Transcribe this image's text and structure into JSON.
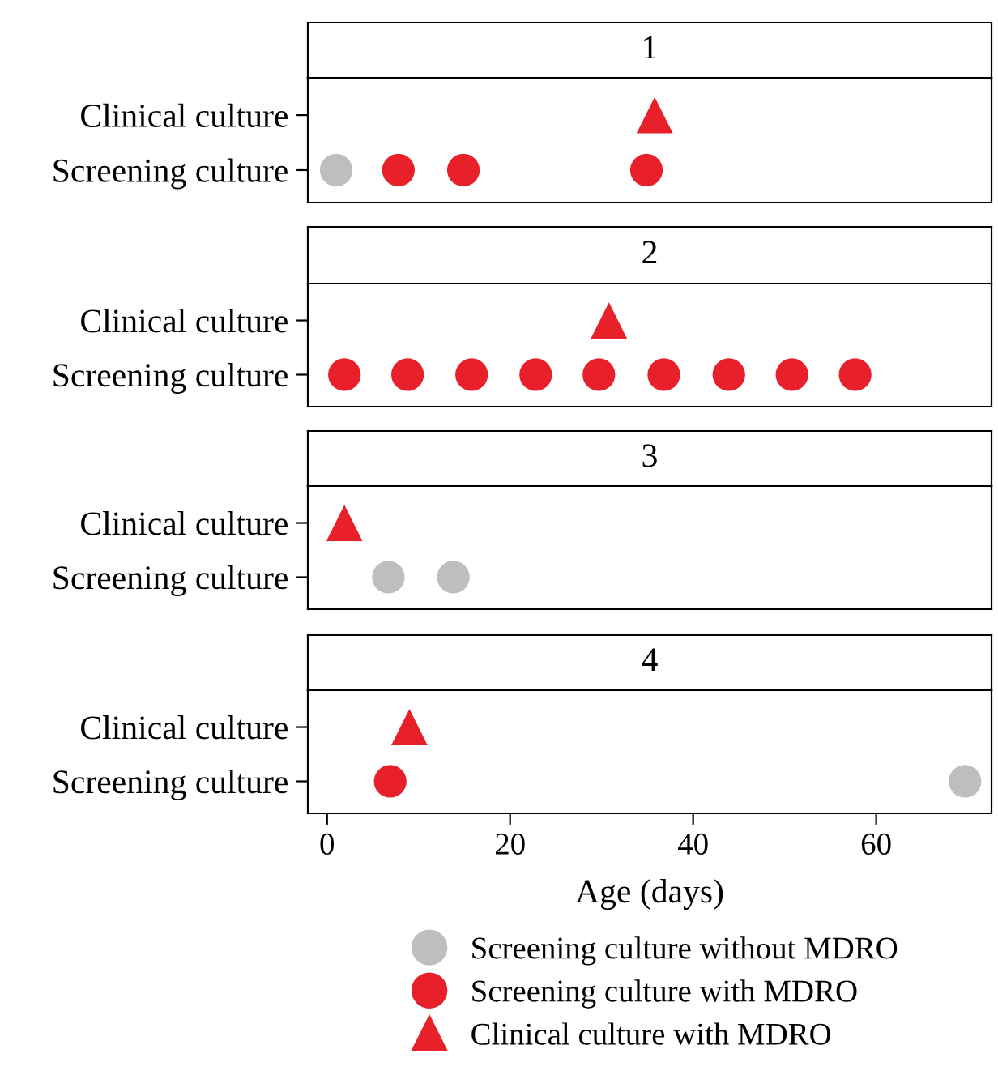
{
  "chart_data": [
    {
      "type": "scatter",
      "title": "1",
      "orientation": "horizontal",
      "categories": [
        "Clinical culture",
        "Screening culture"
      ],
      "xlim": [
        -2.1,
        72.6
      ],
      "xticks": [
        0,
        20,
        40,
        60
      ],
      "tick_labels": "y",
      "grid": false,
      "legend": false,
      "series": [
        {
          "color": "#bebebe",
          "marker": "circle",
          "values": [
            null,
            1
          ]
        },
        {
          "color": "#e8202a",
          "marker": "circle",
          "values": [
            null,
            7.8
          ]
        },
        {
          "color": "#e8202a",
          "marker": "circle",
          "values": [
            null,
            14.9
          ]
        },
        {
          "color": "#e8202a",
          "marker": "circle",
          "values": [
            null,
            34.9
          ]
        },
        {
          "color": "#e8202a",
          "marker": "triangle",
          "values": [
            35.8,
            null
          ]
        }
      ]
    },
    {
      "type": "scatter",
      "title": "2",
      "orientation": "horizontal",
      "categories": [
        "Clinical culture",
        "Screening culture"
      ],
      "xlim": [
        -2.1,
        72.6
      ],
      "xticks": [
        0,
        20,
        40,
        60
      ],
      "tick_labels": "y",
      "grid": false,
      "legend": false,
      "series": [
        {
          "color": "#e8202a",
          "marker": "circle",
          "values": [
            null,
            1.9
          ]
        },
        {
          "color": "#e8202a",
          "marker": "circle",
          "values": [
            null,
            8.8
          ]
        },
        {
          "color": "#e8202a",
          "marker": "circle",
          "values": [
            null,
            15.8
          ]
        },
        {
          "color": "#e8202a",
          "marker": "circle",
          "values": [
            null,
            22.8
          ]
        },
        {
          "color": "#e8202a",
          "marker": "circle",
          "values": [
            null,
            29.7
          ]
        },
        {
          "color": "#e8202a",
          "marker": "circle",
          "values": [
            null,
            36.8
          ]
        },
        {
          "color": "#e8202a",
          "marker": "circle",
          "values": [
            null,
            43.9
          ]
        },
        {
          "color": "#e8202a",
          "marker": "circle",
          "values": [
            null,
            50.8
          ]
        },
        {
          "color": "#e8202a",
          "marker": "circle",
          "values": [
            null,
            57.7
          ]
        },
        {
          "color": "#e8202a",
          "marker": "triangle",
          "values": [
            30.8,
            null
          ]
        }
      ]
    },
    {
      "type": "scatter",
      "title": "3",
      "orientation": "horizontal",
      "categories": [
        "Clinical culture",
        "Screening culture"
      ],
      "xlim": [
        -2.1,
        72.6
      ],
      "xticks": [
        0,
        20,
        40,
        60
      ],
      "tick_labels": "y",
      "grid": false,
      "legend": false,
      "series": [
        {
          "color": "#bebebe",
          "marker": "circle",
          "values": [
            null,
            6.7
          ]
        },
        {
          "color": "#bebebe",
          "marker": "circle",
          "values": [
            null,
            13.8
          ]
        },
        {
          "color": "#e8202a",
          "marker": "triangle",
          "values": [
            1.9,
            null
          ]
        }
      ]
    },
    {
      "type": "scatter",
      "title": "4",
      "xlabel": "Age (days)",
      "orientation": "horizontal",
      "categories": [
        "Clinical culture",
        "Screening culture"
      ],
      "xlim": [
        -2.1,
        72.6
      ],
      "xticks": [
        0,
        20,
        40,
        60
      ],
      "grid": false,
      "legend": "bottom",
      "series": [
        {
          "name": "Screening culture without MDRO",
          "color": "#bebebe",
          "marker": "circle",
          "values": [
            null,
            69.7
          ]
        },
        {
          "name": "Screening culture with MDRO",
          "color": "#e8202a",
          "marker": "circle",
          "values": [
            null,
            6.9
          ]
        },
        {
          "name": "Clinical culture with MDRO",
          "color": "#e8202a",
          "marker": "triangle",
          "values": [
            9,
            null
          ]
        }
      ]
    }
  ]
}
